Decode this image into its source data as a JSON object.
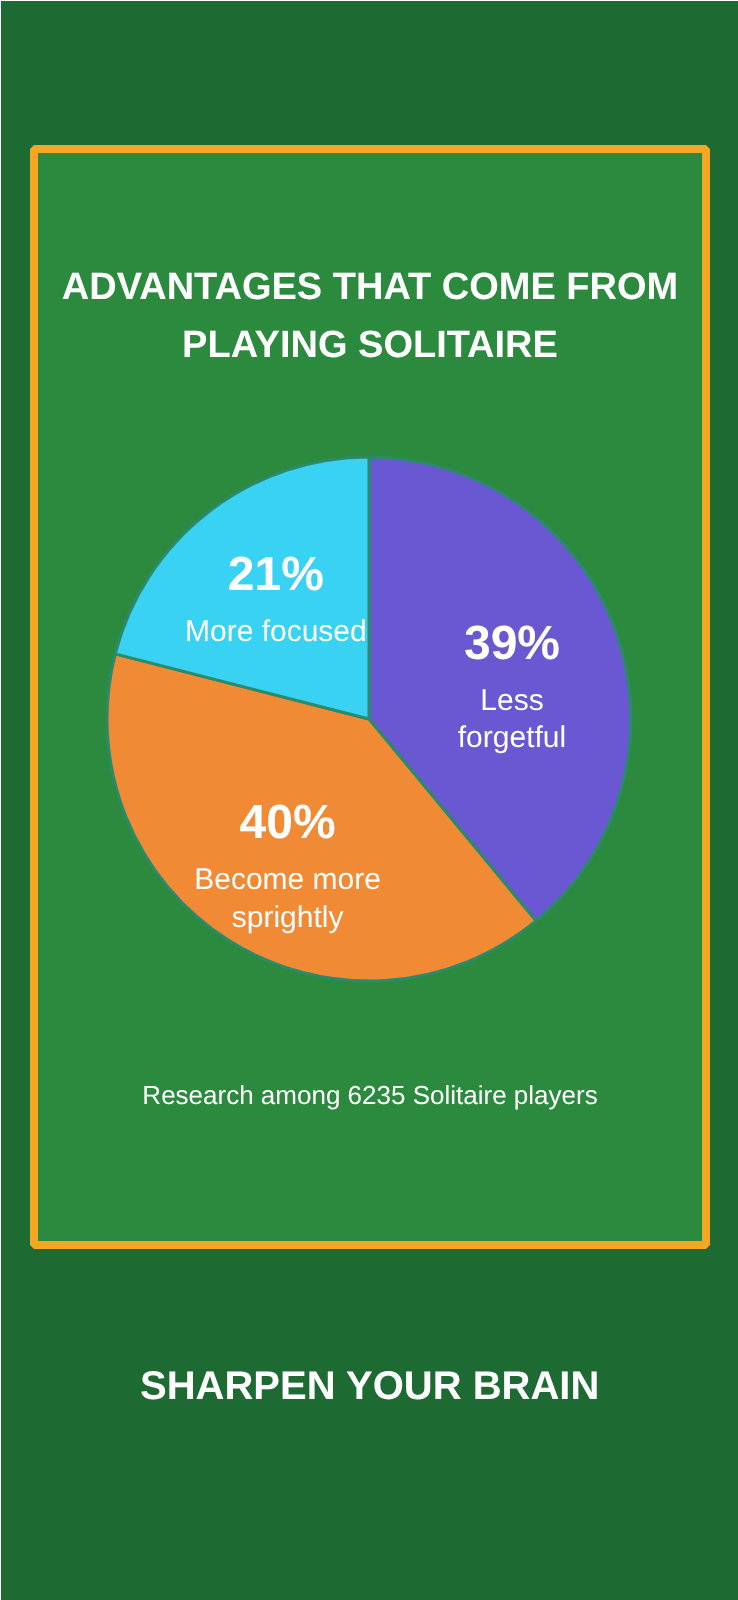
{
  "chart_data": {
    "type": "pie",
    "title": "ADVANTAGES THAT COME FROM PLAYING SOLITAIRE",
    "categories": [
      "Less forgetful",
      "Become more sprightly",
      "More focused"
    ],
    "values": [
      39,
      40,
      21
    ],
    "colors": [
      "#6a58d2",
      "#f08a35",
      "#3ad2f2"
    ],
    "value_labels": [
      "39%",
      "40%",
      "21%"
    ],
    "annotations": [
      "Research among 6235 Solitaire players",
      "SHARPEN YOUR BRAIN"
    ]
  }
}
